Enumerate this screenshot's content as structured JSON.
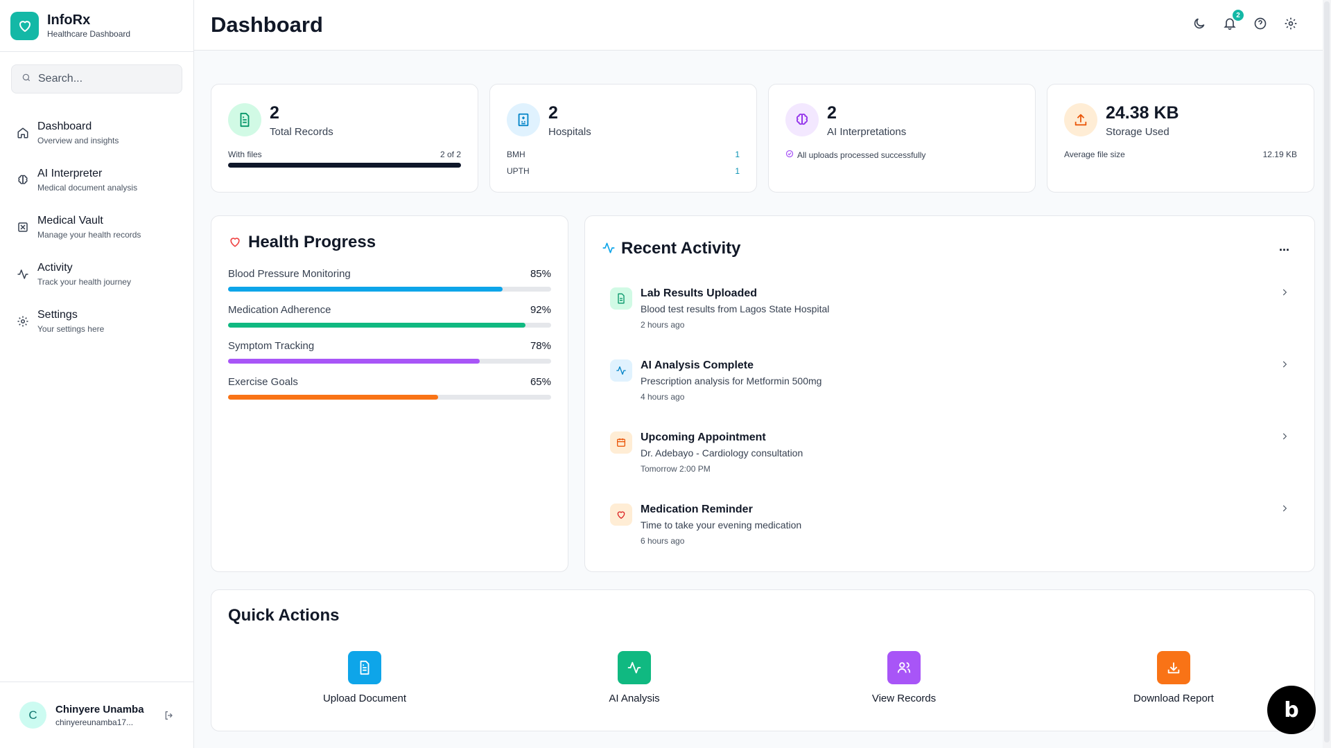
{
  "brand": {
    "name": "InfoRx",
    "subtitle": "Healthcare Dashboard",
    "logo_icon": "heart-icon"
  },
  "search": {
    "placeholder": "Search..."
  },
  "nav": [
    {
      "label": "Dashboard",
      "sub": "Overview and insights",
      "icon": "home-icon"
    },
    {
      "label": "AI Interpreter",
      "sub": "Medical document analysis",
      "icon": "brain-icon"
    },
    {
      "label": "Medical Vault",
      "sub": "Manage your health records",
      "icon": "vault-icon"
    },
    {
      "label": "Activity",
      "sub": "Track your health journey",
      "icon": "activity-icon"
    },
    {
      "label": "Settings",
      "sub": "Your settings here",
      "icon": "gear-icon"
    }
  ],
  "user": {
    "initial": "C",
    "name": "Chinyere Unamba",
    "email": "chinyereunamba17..."
  },
  "header": {
    "title": "Dashboard",
    "notification_count": "2"
  },
  "stats": {
    "records": {
      "value": "2",
      "label": "Total Records",
      "row_label": "With files",
      "row_value": "2 of 2",
      "progress": 1.0
    },
    "hospitals": {
      "value": "2",
      "label": "Hospitals",
      "rows": [
        {
          "name": "BMH",
          "count": "1"
        },
        {
          "name": "UPTH",
          "count": "1"
        }
      ]
    },
    "ai": {
      "value": "2",
      "label": "AI Interpretations",
      "note": "All uploads processed successfully"
    },
    "storage": {
      "value": "24.38 KB",
      "label": "Storage Used",
      "row_label": "Average file size",
      "row_value": "12.19 KB"
    }
  },
  "health_progress": {
    "title": "Health Progress",
    "items": [
      {
        "label": "Blood Pressure Monitoring",
        "percent": "85%",
        "value": 85,
        "color": "#0ea5e9"
      },
      {
        "label": "Medication Adherence",
        "percent": "92%",
        "value": 92,
        "color": "#10b981"
      },
      {
        "label": "Symptom Tracking",
        "percent": "78%",
        "value": 78,
        "color": "#a855f7"
      },
      {
        "label": "Exercise Goals",
        "percent": "65%",
        "value": 65,
        "color": "#f97316"
      }
    ]
  },
  "recent_activity": {
    "title": "Recent Activity",
    "more": "...",
    "items": [
      {
        "title": "Lab Results Uploaded",
        "desc": "Blood test results from Lagos State Hospital",
        "time": "2 hours ago"
      },
      {
        "title": "AI Analysis Complete",
        "desc": "Prescription analysis for Metformin 500mg",
        "time": "4 hours ago"
      },
      {
        "title": "Upcoming Appointment",
        "desc": "Dr. Adebayo - Cardiology consultation",
        "time": "Tomorrow 2:00 PM"
      },
      {
        "title": "Medication Reminder",
        "desc": "Time to take your evening medication",
        "time": "6 hours ago"
      }
    ]
  },
  "quick_actions": {
    "title": "Quick Actions",
    "items": [
      {
        "label": "Upload Document",
        "color": "#0ea5e9"
      },
      {
        "label": "AI Analysis",
        "color": "#10b981"
      },
      {
        "label": "View Records",
        "color": "#a855f7"
      },
      {
        "label": "Download Report",
        "color": "#f97316"
      }
    ]
  }
}
